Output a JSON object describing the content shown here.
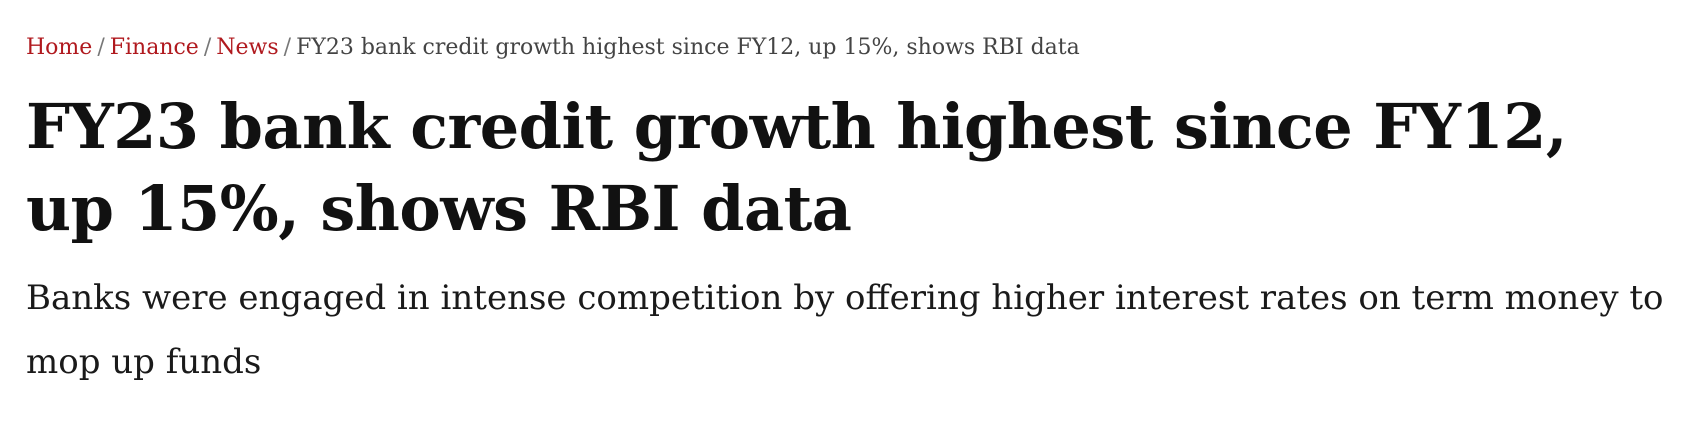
{
  "breadcrumb": {
    "items": [
      {
        "label": "Home"
      },
      {
        "label": "Finance"
      },
      {
        "label": "News"
      }
    ],
    "separator": "/",
    "current": "FY23 bank credit growth highest since FY12, up 15%, shows RBI data"
  },
  "article": {
    "headline": "FY23 bank credit growth highest since FY12, up 15%, shows RBI data",
    "subheadline": "Banks were engaged in intense competition by offering higher interest rates on term money to mop up funds"
  },
  "colors": {
    "link": "#b0191e",
    "text": "#111111",
    "muted": "#444444"
  }
}
